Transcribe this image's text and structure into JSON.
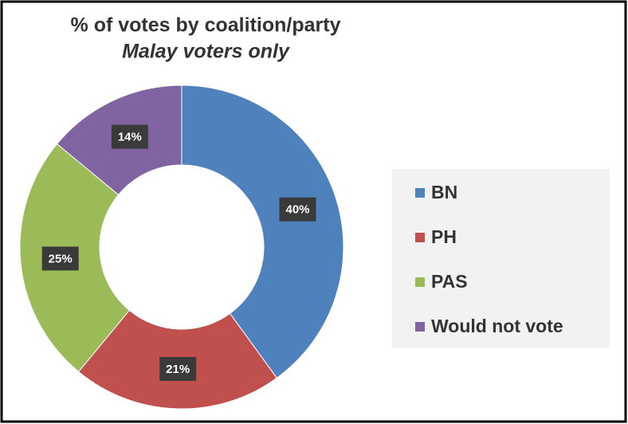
{
  "chart_data": {
    "type": "donut",
    "title": "% of votes by coalition/party",
    "subtitle": "Malay voters only",
    "categories": [
      "BN",
      "PH",
      "PAS",
      "Would not vote"
    ],
    "values": [
      40,
      21,
      25,
      14
    ],
    "value_labels": [
      "40%",
      "21%",
      "25%",
      "14%"
    ],
    "colors": [
      "#4f81bd",
      "#c0504d",
      "#9bbb59",
      "#8064a2"
    ],
    "legend": "right"
  }
}
